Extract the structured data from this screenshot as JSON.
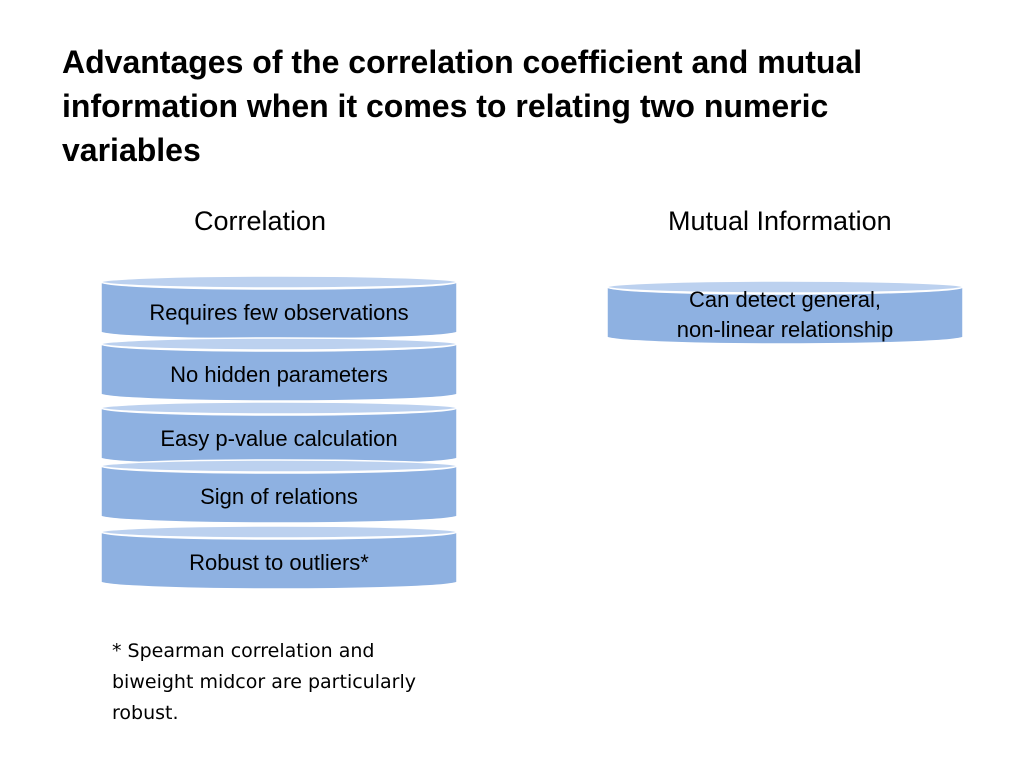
{
  "title": "Advantages of the correlation coefficient and mutual information when it comes to relating two numeric variables",
  "columns": {
    "correlation": {
      "heading": "Correlation",
      "items": [
        "Requires few observations",
        "No hidden parameters",
        "Easy p-value calculation",
        "Sign of relations",
        "Robust to outliers*"
      ]
    },
    "mutual_information": {
      "heading": "Mutual Information",
      "items": [
        [
          "Can detect general,",
          "non-linear relationship"
        ]
      ]
    }
  },
  "footnote": [
    "* Spearman correlation and",
    "biweight midcor are particularly",
    "robust."
  ],
  "colors": {
    "disk_body": "#8eb1e1",
    "disk_top": "#bcd1ef",
    "disk_outline": "#ffffff"
  }
}
